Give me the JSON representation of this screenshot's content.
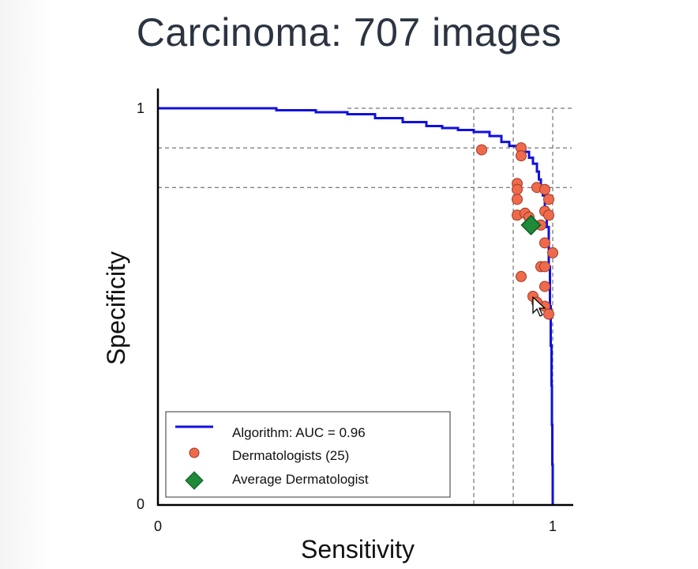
{
  "slide": {
    "title": "Carcinoma: 707 images"
  },
  "colors": {
    "roc_line": "#1010e0",
    "dermatologist_fill": "#ef6a4c",
    "dermatologist_stroke": "#a03a25",
    "average_fill": "#1f8a3a",
    "average_stroke": "#0e5a20",
    "axis": "#000000",
    "grid_dash": "#555555"
  },
  "chart_data": {
    "type": "scatter",
    "title": "Carcinoma: 707 images",
    "xlabel": "Sensitivity",
    "ylabel": "Specificity",
    "xlim": [
      0,
      1
    ],
    "ylim": [
      0,
      1
    ],
    "x_ticks": [
      "0",
      "1"
    ],
    "y_ticks": [
      "0",
      "1"
    ],
    "legend_position": "lower-center",
    "reference_lines": {
      "vertical": [
        0.8,
        0.9,
        1.0
      ],
      "horizontal": [
        0.9,
        0.8
      ]
    },
    "series": [
      {
        "name": "Algorithm: AUC = 0.96",
        "kind": "line",
        "x": [
          0.0,
          0.15,
          0.3,
          0.4,
          0.48,
          0.55,
          0.62,
          0.68,
          0.72,
          0.76,
          0.8,
          0.84,
          0.87,
          0.89,
          0.91,
          0.93,
          0.94,
          0.95,
          0.96,
          0.965,
          0.97,
          0.975,
          0.98,
          0.985,
          0.99,
          0.993,
          0.995,
          0.997,
          0.998,
          0.999,
          1.0
        ],
        "y": [
          1.0,
          1.0,
          0.995,
          0.99,
          0.985,
          0.975,
          0.965,
          0.955,
          0.95,
          0.945,
          0.94,
          0.93,
          0.915,
          0.905,
          0.9,
          0.89,
          0.875,
          0.86,
          0.84,
          0.82,
          0.8,
          0.78,
          0.75,
          0.7,
          0.6,
          0.5,
          0.4,
          0.3,
          0.2,
          0.1,
          0.0
        ]
      },
      {
        "name": "Dermatologists (25)",
        "kind": "points",
        "x": [
          0.82,
          0.92,
          0.92,
          0.91,
          0.91,
          0.91,
          0.91,
          0.93,
          0.94,
          0.96,
          0.98,
          0.99,
          0.97,
          0.98,
          0.99,
          0.97,
          0.98,
          1.0,
          0.98,
          0.95,
          0.92,
          0.96,
          0.98,
          0.99,
          0.98
        ],
        "y": [
          0.895,
          0.9,
          0.88,
          0.81,
          0.795,
          0.77,
          0.73,
          0.735,
          0.725,
          0.8,
          0.795,
          0.77,
          0.705,
          0.74,
          0.73,
          0.6,
          0.6,
          0.635,
          0.5,
          0.525,
          0.575,
          0.51,
          0.55,
          0.48,
          0.66
        ]
      },
      {
        "name": "Average Dermatologist",
        "kind": "marker",
        "x": [
          0.945
        ],
        "y": [
          0.705
        ]
      }
    ]
  }
}
